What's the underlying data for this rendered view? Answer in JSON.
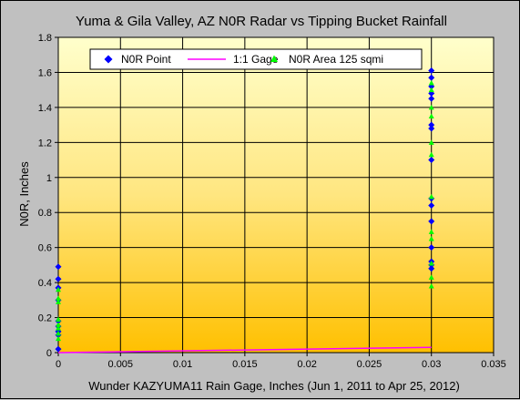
{
  "chart_data": {
    "type": "scatter",
    "title": "Yuma & Gila Valley, AZ N0R Radar vs Tipping Bucket Rainfall",
    "xlabel": "Wunder KAZYUMA11 Rain Gage, Inches (Jun 1, 2011 to Apr 25, 2012)",
    "ylabel": "N0R, Inches",
    "xlim": [
      0,
      0.035
    ],
    "ylim": [
      0,
      1.8
    ],
    "x_ticks": [
      "0",
      "0.005",
      "0.01",
      "0.015",
      "0.02",
      "0.025",
      "0.03",
      "0.035"
    ],
    "y_ticks": [
      "0",
      "0.2",
      "0.4",
      "0.6",
      "0.8",
      "1",
      "1.2",
      "1.4",
      "1.6",
      "1.8"
    ],
    "grid": true,
    "legend_position": "top-left",
    "series": [
      {
        "name": "N0R Point",
        "marker": "diamond",
        "color": "#0000ff",
        "points": [
          [
            0,
            0.02
          ],
          [
            0,
            0.1
          ],
          [
            0,
            0.12
          ],
          [
            0,
            0.15
          ],
          [
            0,
            0.18
          ],
          [
            0,
            0.3
          ],
          [
            0,
            0.37
          ],
          [
            0,
            0.42
          ],
          [
            0,
            0.49
          ],
          [
            0.03,
            0.48
          ],
          [
            0.03,
            0.5
          ],
          [
            0.03,
            0.52
          ],
          [
            0.03,
            0.6
          ],
          [
            0.03,
            0.75
          ],
          [
            0.03,
            0.84
          ],
          [
            0.03,
            0.88
          ],
          [
            0.03,
            1.1
          ],
          [
            0.03,
            1.28
          ],
          [
            0.03,
            1.3
          ],
          [
            0.03,
            1.45
          ],
          [
            0.03,
            1.48
          ],
          [
            0.03,
            1.52
          ],
          [
            0.03,
            1.57
          ],
          [
            0.03,
            1.61
          ]
        ]
      },
      {
        "name": "1:1 Gage",
        "marker": "line",
        "color": "#ff00ff",
        "points": [
          [
            0,
            0
          ],
          [
            0.03,
            0.03
          ]
        ]
      },
      {
        "name": "N0R Area 125 sqmi",
        "marker": "triangle",
        "color": "#00ff00",
        "points": [
          [
            0,
            0.08
          ],
          [
            0,
            0.11
          ],
          [
            0,
            0.14
          ],
          [
            0,
            0.16
          ],
          [
            0,
            0.19
          ],
          [
            0,
            0.29
          ],
          [
            0,
            0.31
          ],
          [
            0,
            0.36
          ],
          [
            0.03,
            0.38
          ],
          [
            0.03,
            0.43
          ],
          [
            0.03,
            0.51
          ],
          [
            0.03,
            0.65
          ],
          [
            0.03,
            0.69
          ],
          [
            0.03,
            0.89
          ],
          [
            0.03,
            1.13
          ],
          [
            0.03,
            1.2
          ],
          [
            0.03,
            1.35
          ],
          [
            0.03,
            1.4
          ],
          [
            0.03,
            1.5
          ],
          [
            0.03,
            1.54
          ]
        ]
      }
    ]
  }
}
